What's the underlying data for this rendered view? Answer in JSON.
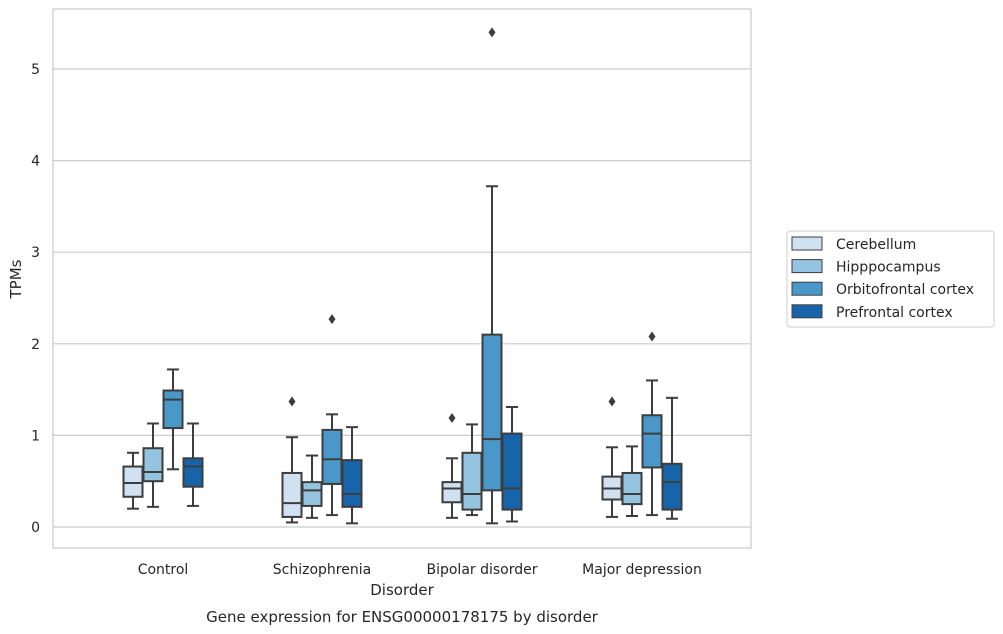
{
  "caption": "Gene expression for ENSG00000178175 by disorder",
  "chart_data": {
    "type": "box",
    "xlabel": "Disorder",
    "ylabel": "TPMs",
    "ylim": [
      -0.22,
      5.66
    ],
    "yticks": [
      0,
      1,
      2,
      3,
      4,
      5
    ],
    "grid": "horizontal",
    "legend_position": "right",
    "categories": [
      "Control",
      "Schizophrenia",
      "Bipolar disorder",
      "Major depression"
    ],
    "series": [
      {
        "name": "Cerebellum",
        "color": "#d0e1f2",
        "boxes": [
          {
            "whisker_low": 0.2,
            "q1": 0.33,
            "median": 0.48,
            "q3": 0.66,
            "whisker_high": 0.81,
            "outliers": []
          },
          {
            "whisker_low": 0.05,
            "q1": 0.11,
            "median": 0.26,
            "q3": 0.59,
            "whisker_high": 0.98,
            "outliers": [
              1.37
            ]
          },
          {
            "whisker_low": 0.1,
            "q1": 0.27,
            "median": 0.42,
            "q3": 0.49,
            "whisker_high": 0.75,
            "outliers": [
              1.19
            ]
          },
          {
            "whisker_low": 0.11,
            "q1": 0.3,
            "median": 0.42,
            "q3": 0.55,
            "whisker_high": 0.87,
            "outliers": [
              1.37
            ]
          }
        ]
      },
      {
        "name": "Hipppocampus",
        "color": "#94c4df",
        "boxes": [
          {
            "whisker_low": 0.22,
            "q1": 0.5,
            "median": 0.6,
            "q3": 0.86,
            "whisker_high": 1.13,
            "outliers": []
          },
          {
            "whisker_low": 0.1,
            "q1": 0.23,
            "median": 0.4,
            "q3": 0.49,
            "whisker_high": 0.78,
            "outliers": []
          },
          {
            "whisker_low": 0.13,
            "q1": 0.19,
            "median": 0.36,
            "q3": 0.81,
            "whisker_high": 1.12,
            "outliers": []
          },
          {
            "whisker_low": 0.12,
            "q1": 0.25,
            "median": 0.36,
            "q3": 0.59,
            "whisker_high": 0.88,
            "outliers": []
          }
        ]
      },
      {
        "name": "Orbitofrontal cortex",
        "color": "#4a98c9",
        "boxes": [
          {
            "whisker_low": 0.63,
            "q1": 1.08,
            "median": 1.39,
            "q3": 1.49,
            "whisker_high": 1.72,
            "outliers": []
          },
          {
            "whisker_low": 0.13,
            "q1": 0.47,
            "median": 0.74,
            "q3": 1.06,
            "whisker_high": 1.23,
            "outliers": [
              2.27
            ]
          },
          {
            "whisker_low": 0.04,
            "q1": 0.4,
            "median": 0.96,
            "q3": 2.1,
            "whisker_high": 3.72,
            "outliers": [
              5.4
            ]
          },
          {
            "whisker_low": 0.13,
            "q1": 0.65,
            "median": 1.02,
            "q3": 1.22,
            "whisker_high": 1.6,
            "outliers": [
              2.08
            ]
          }
        ]
      },
      {
        "name": "Prefrontal cortex",
        "color": "#1764ab",
        "boxes": [
          {
            "whisker_low": 0.23,
            "q1": 0.44,
            "median": 0.66,
            "q3": 0.75,
            "whisker_high": 1.13,
            "outliers": []
          },
          {
            "whisker_low": 0.04,
            "q1": 0.22,
            "median": 0.36,
            "q3": 0.73,
            "whisker_high": 1.09,
            "outliers": []
          },
          {
            "whisker_low": 0.06,
            "q1": 0.19,
            "median": 0.42,
            "q3": 1.02,
            "whisker_high": 1.31,
            "outliers": []
          },
          {
            "whisker_low": 0.09,
            "q1": 0.19,
            "median": 0.49,
            "q3": 0.69,
            "whisker_high": 1.41,
            "outliers": []
          }
        ]
      }
    ]
  }
}
